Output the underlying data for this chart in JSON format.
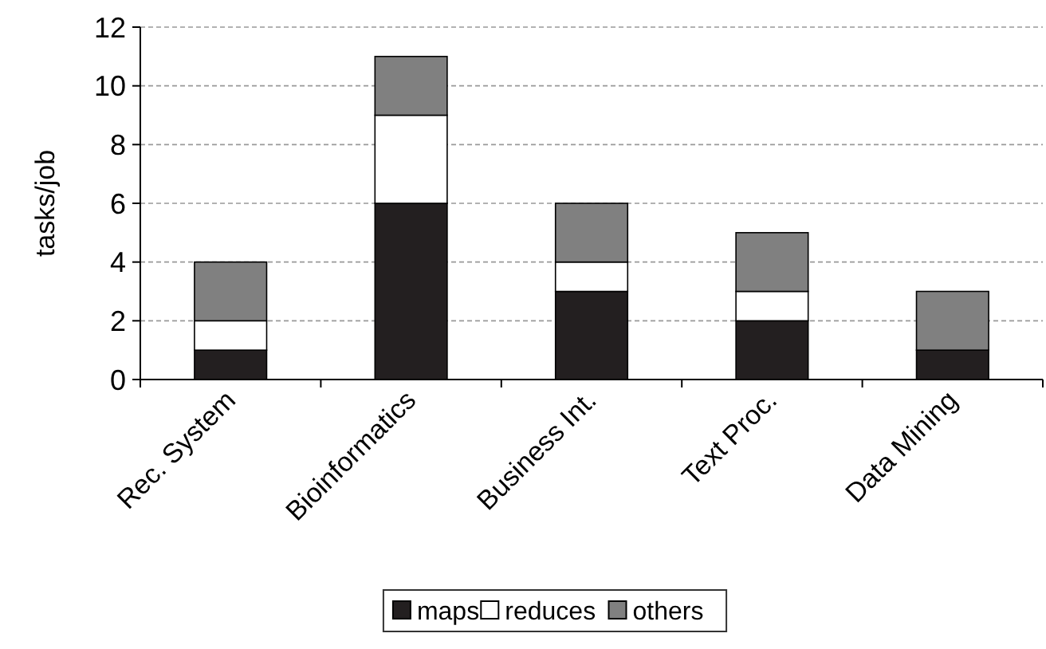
{
  "chart_data": {
    "type": "bar",
    "stacked": true,
    "ylabel": "tasks/job",
    "categories": [
      "Rec. System",
      "Bioinformatics",
      "Business Int.",
      "Text Proc.",
      "Data Mining"
    ],
    "series": [
      {
        "name": "maps",
        "color": "#231f20",
        "values": [
          1,
          6,
          3,
          2,
          1
        ]
      },
      {
        "name": "reduces",
        "color": "#ffffff",
        "values": [
          1,
          3,
          1,
          1,
          0
        ]
      },
      {
        "name": "others",
        "color": "#808080",
        "values": [
          2,
          2,
          2,
          2,
          2
        ]
      }
    ],
    "ylim": [
      0,
      12
    ],
    "yticks": [
      0,
      2,
      4,
      6,
      8,
      10,
      12
    ],
    "grid": "y",
    "legend": "bottom"
  }
}
